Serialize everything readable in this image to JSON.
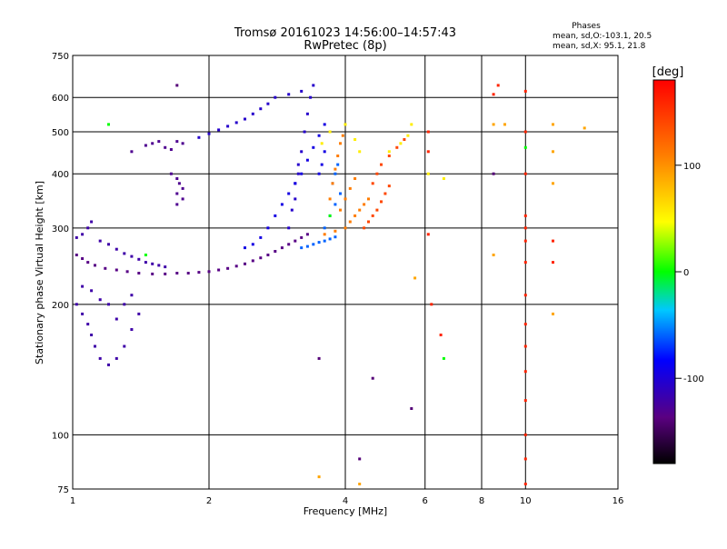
{
  "chart_data": {
    "type": "scatter",
    "title": "Tromsø 20161023 14:56:00–14:57:43",
    "subtitle": "RwPretec (8p)",
    "xlabel": "Frequency [MHz]",
    "ylabel": "Stationary phase Virtual Height [km]",
    "x_scale": "log",
    "y_scale": "log",
    "xlim": [
      1,
      16
    ],
    "ylim": [
      75,
      750
    ],
    "x_ticks": [
      1,
      2,
      4,
      6,
      8,
      10,
      16
    ],
    "y_ticks": [
      75,
      100,
      200,
      300,
      400,
      500,
      600,
      750
    ],
    "grid": true,
    "legend": {
      "title": "Phases",
      "lines": [
        "mean, sd,O:-103.1, 20.5",
        "mean, sd,X:  95.1, 21.8"
      ]
    },
    "colorbar": {
      "label": "[deg]",
      "range": [
        -180,
        180
      ],
      "ticks": [
        100,
        0,
        -100
      ]
    },
    "series": [
      {
        "phase": -135,
        "points": [
          [
            1.02,
            260
          ],
          [
            1.05,
            255
          ],
          [
            1.08,
            250
          ],
          [
            1.12,
            246
          ],
          [
            1.18,
            242
          ],
          [
            1.25,
            240
          ],
          [
            1.32,
            238
          ],
          [
            1.4,
            236
          ],
          [
            1.5,
            235
          ],
          [
            1.6,
            235
          ],
          [
            1.7,
            236
          ],
          [
            1.8,
            236
          ],
          [
            1.9,
            237
          ],
          [
            2.0,
            238
          ],
          [
            2.1,
            240
          ],
          [
            2.2,
            242
          ],
          [
            2.3,
            245
          ],
          [
            2.4,
            248
          ],
          [
            2.5,
            252
          ],
          [
            2.6,
            256
          ],
          [
            2.7,
            260
          ],
          [
            2.8,
            265
          ],
          [
            2.9,
            270
          ],
          [
            3.0,
            275
          ],
          [
            3.1,
            280
          ],
          [
            3.2,
            285
          ],
          [
            3.3,
            290
          ]
        ]
      },
      {
        "phase": -120,
        "points": [
          [
            1.02,
            285
          ],
          [
            1.05,
            290
          ],
          [
            1.08,
            300
          ],
          [
            1.1,
            310
          ],
          [
            1.15,
            280
          ],
          [
            1.2,
            275
          ],
          [
            1.25,
            268
          ],
          [
            1.3,
            262
          ],
          [
            1.35,
            258
          ],
          [
            1.4,
            254
          ],
          [
            1.45,
            250
          ],
          [
            1.5,
            248
          ],
          [
            1.55,
            246
          ],
          [
            1.6,
            244
          ],
          [
            1.02,
            200
          ],
          [
            1.05,
            190
          ],
          [
            1.08,
            180
          ],
          [
            1.1,
            170
          ],
          [
            1.12,
            160
          ],
          [
            1.15,
            150
          ],
          [
            1.2,
            145
          ],
          [
            1.25,
            150
          ],
          [
            1.3,
            160
          ],
          [
            1.35,
            175
          ],
          [
            1.4,
            190
          ],
          [
            1.05,
            220
          ],
          [
            1.1,
            215
          ],
          [
            1.15,
            205
          ],
          [
            1.2,
            200
          ],
          [
            1.25,
            185
          ],
          [
            1.3,
            200
          ],
          [
            1.35,
            210
          ]
        ]
      },
      {
        "phase": -130,
        "points": [
          [
            1.35,
            450
          ],
          [
            1.45,
            465
          ],
          [
            1.5,
            470
          ],
          [
            1.55,
            475
          ],
          [
            1.6,
            460
          ],
          [
            1.65,
            455
          ],
          [
            1.7,
            475
          ],
          [
            1.75,
            470
          ],
          [
            1.65,
            400
          ],
          [
            1.7,
            390
          ],
          [
            1.72,
            380
          ],
          [
            1.75,
            370
          ],
          [
            1.7,
            360
          ],
          [
            1.75,
            350
          ],
          [
            1.7,
            340
          ]
        ]
      },
      {
        "phase": -105,
        "points": [
          [
            1.9,
            485
          ],
          [
            2.0,
            495
          ],
          [
            2.1,
            505
          ],
          [
            2.2,
            515
          ],
          [
            2.3,
            525
          ],
          [
            2.4,
            535
          ],
          [
            2.5,
            550
          ],
          [
            2.6,
            565
          ],
          [
            2.7,
            580
          ],
          [
            2.8,
            600
          ],
          [
            3.0,
            610
          ],
          [
            3.2,
            620
          ],
          [
            3.1,
            350
          ],
          [
            3.15,
            400
          ],
          [
            3.2,
            450
          ],
          [
            3.25,
            500
          ],
          [
            3.3,
            550
          ],
          [
            3.35,
            600
          ],
          [
            3.4,
            640
          ],
          [
            3.0,
            300
          ],
          [
            3.05,
            330
          ],
          [
            3.1,
            380
          ],
          [
            3.15,
            420
          ]
        ]
      },
      {
        "phase": -95,
        "points": [
          [
            2.4,
            270
          ],
          [
            2.5,
            275
          ],
          [
            2.6,
            285
          ],
          [
            2.7,
            300
          ],
          [
            2.8,
            320
          ],
          [
            2.9,
            340
          ],
          [
            3.0,
            360
          ],
          [
            3.1,
            380
          ],
          [
            3.2,
            400
          ],
          [
            3.3,
            430
          ],
          [
            3.4,
            460
          ],
          [
            3.5,
            490
          ],
          [
            3.6,
            520
          ],
          [
            3.5,
            400
          ],
          [
            3.55,
            420
          ],
          [
            3.6,
            450
          ]
        ]
      },
      {
        "phase": -60,
        "points": [
          [
            3.2,
            270
          ],
          [
            3.3,
            272
          ],
          [
            3.4,
            275
          ],
          [
            3.5,
            278
          ],
          [
            3.6,
            280
          ],
          [
            3.7,
            283
          ],
          [
            3.8,
            286
          ],
          [
            3.6,
            300
          ],
          [
            3.7,
            320
          ],
          [
            3.8,
            340
          ],
          [
            3.9,
            360
          ],
          [
            3.75,
            380
          ],
          [
            3.8,
            400
          ],
          [
            3.85,
            420
          ]
        ]
      },
      {
        "phase": 110,
        "points": [
          [
            3.7,
            350
          ],
          [
            3.75,
            380
          ],
          [
            3.8,
            410
          ],
          [
            3.85,
            440
          ],
          [
            3.9,
            470
          ],
          [
            3.95,
            490
          ],
          [
            3.6,
            290
          ],
          [
            3.8,
            295
          ],
          [
            4.0,
            300
          ],
          [
            4.1,
            310
          ],
          [
            4.2,
            320
          ],
          [
            4.3,
            330
          ],
          [
            4.4,
            340
          ],
          [
            4.5,
            350
          ],
          [
            3.9,
            330
          ],
          [
            4.0,
            350
          ],
          [
            4.1,
            370
          ],
          [
            4.2,
            390
          ]
        ]
      },
      {
        "phase": 140,
        "points": [
          [
            4.4,
            300
          ],
          [
            4.5,
            310
          ],
          [
            4.6,
            320
          ],
          [
            4.7,
            330
          ],
          [
            4.8,
            345
          ],
          [
            4.9,
            360
          ],
          [
            5.0,
            375
          ],
          [
            4.6,
            380
          ],
          [
            4.7,
            400
          ],
          [
            4.8,
            420
          ],
          [
            5.0,
            440
          ],
          [
            5.2,
            460
          ],
          [
            5.4,
            480
          ]
        ]
      },
      {
        "phase": 55,
        "points": [
          [
            3.55,
            470
          ],
          [
            3.7,
            500
          ],
          [
            4.0,
            520
          ],
          [
            4.2,
            480
          ],
          [
            4.3,
            450
          ],
          [
            5.0,
            450
          ],
          [
            5.3,
            470
          ],
          [
            5.5,
            490
          ],
          [
            5.6,
            520
          ],
          [
            6.1,
            400
          ],
          [
            6.6,
            390
          ]
        ]
      },
      {
        "phase": 160,
        "points": [
          [
            6.1,
            500
          ],
          [
            6.1,
            450
          ],
          [
            6.1,
            290
          ],
          [
            6.2,
            200
          ],
          [
            6.5,
            170
          ],
          [
            8.5,
            610
          ],
          [
            8.7,
            640
          ],
          [
            10.0,
            620
          ],
          [
            10.0,
            500
          ],
          [
            10.0,
            400
          ],
          [
            10.0,
            320
          ],
          [
            10.0,
            300
          ],
          [
            10.0,
            280
          ],
          [
            10.0,
            250
          ],
          [
            10.0,
            210
          ],
          [
            10.0,
            180
          ],
          [
            10.0,
            160
          ],
          [
            10.0,
            140
          ],
          [
            10.0,
            120
          ],
          [
            10.0,
            100
          ],
          [
            10.0,
            88
          ],
          [
            10.0,
            77
          ],
          [
            11.5,
            280
          ],
          [
            11.5,
            250
          ]
        ]
      },
      {
        "phase": 90,
        "points": [
          [
            8.5,
            520
          ],
          [
            8.5,
            260
          ],
          [
            9.0,
            520
          ],
          [
            11.5,
            520
          ],
          [
            11.5,
            450
          ],
          [
            11.5,
            380
          ],
          [
            11.5,
            190
          ],
          [
            13.5,
            510
          ],
          [
            5.7,
            230
          ],
          [
            3.5,
            80
          ],
          [
            4.3,
            77
          ]
        ]
      },
      {
        "phase": -140,
        "points": [
          [
            3.5,
            150
          ],
          [
            4.6,
            135
          ],
          [
            5.6,
            115
          ],
          [
            4.3,
            88
          ],
          [
            8.5,
            400
          ],
          [
            1.7,
            640
          ]
        ]
      },
      {
        "phase": 0,
        "points": [
          [
            1.45,
            260
          ],
          [
            1.2,
            520
          ],
          [
            6.6,
            150
          ],
          [
            10.0,
            460
          ],
          [
            3.7,
            320
          ]
        ]
      }
    ]
  }
}
